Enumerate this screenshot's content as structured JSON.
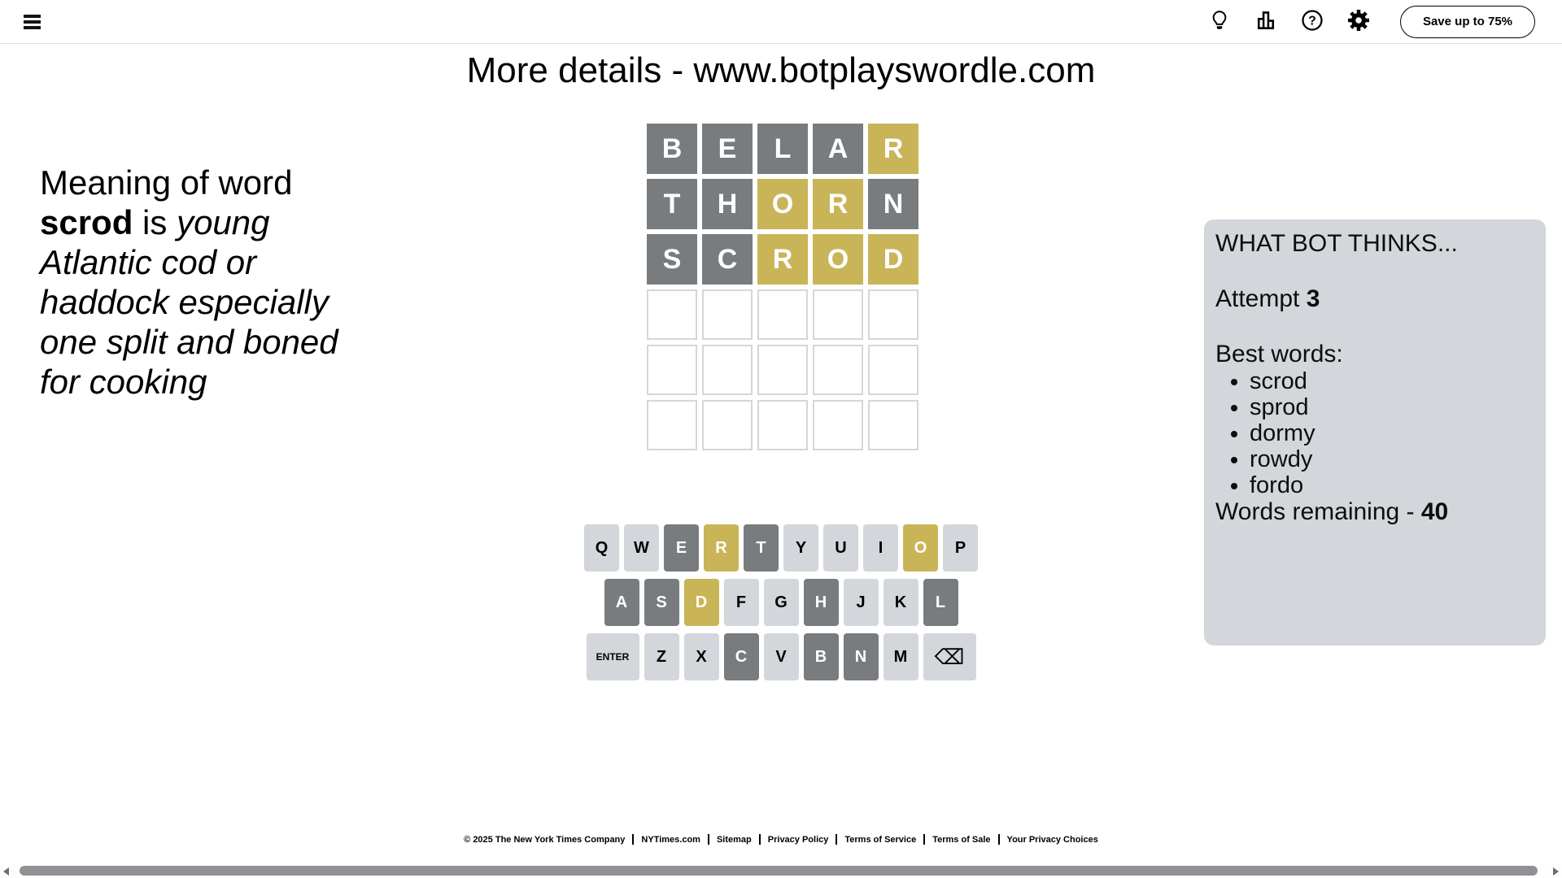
{
  "header": {
    "menu_icon": "hamburger",
    "actions": {
      "hint": "lightbulb",
      "stats": "bar-chart",
      "help": "question-mark",
      "settings": "gear"
    },
    "subscribe_label": "Save up to 75%"
  },
  "title": "More details - www.botplayswordle.com",
  "definition": {
    "lead": "Meaning of word",
    "word": "scrod",
    "connector": "is",
    "meaning": "young Atlantic cod or haddock especially one split and boned for cooking"
  },
  "board": {
    "rows": [
      {
        "letters": [
          "B",
          "E",
          "L",
          "A",
          "R"
        ],
        "states": [
          "absent",
          "absent",
          "absent",
          "absent",
          "present"
        ]
      },
      {
        "letters": [
          "T",
          "H",
          "O",
          "R",
          "N"
        ],
        "states": [
          "absent",
          "absent",
          "present",
          "present",
          "absent"
        ]
      },
      {
        "letters": [
          "S",
          "C",
          "R",
          "O",
          "D"
        ],
        "states": [
          "absent",
          "absent",
          "present",
          "present",
          "present"
        ]
      },
      {
        "letters": [
          "",
          "",
          "",
          "",
          ""
        ],
        "states": [
          "empty",
          "empty",
          "empty",
          "empty",
          "empty"
        ]
      },
      {
        "letters": [
          "",
          "",
          "",
          "",
          ""
        ],
        "states": [
          "empty",
          "empty",
          "empty",
          "empty",
          "empty"
        ]
      },
      {
        "letters": [
          "",
          "",
          "",
          "",
          ""
        ],
        "states": [
          "empty",
          "empty",
          "empty",
          "empty",
          "empty"
        ]
      }
    ]
  },
  "keyboard": {
    "rows": [
      [
        {
          "id": "q",
          "label": "Q",
          "state": "unused"
        },
        {
          "id": "w",
          "label": "W",
          "state": "unused"
        },
        {
          "id": "e",
          "label": "E",
          "state": "absent"
        },
        {
          "id": "r",
          "label": "R",
          "state": "present"
        },
        {
          "id": "t",
          "label": "T",
          "state": "absent"
        },
        {
          "id": "y",
          "label": "Y",
          "state": "unused"
        },
        {
          "id": "u",
          "label": "U",
          "state": "unused"
        },
        {
          "id": "i",
          "label": "I",
          "state": "unused"
        },
        {
          "id": "o",
          "label": "O",
          "state": "present"
        },
        {
          "id": "p",
          "label": "P",
          "state": "unused"
        }
      ],
      [
        {
          "id": "a",
          "label": "A",
          "state": "absent"
        },
        {
          "id": "s",
          "label": "S",
          "state": "absent"
        },
        {
          "id": "d",
          "label": "D",
          "state": "present"
        },
        {
          "id": "f",
          "label": "F",
          "state": "unused"
        },
        {
          "id": "g",
          "label": "G",
          "state": "unused"
        },
        {
          "id": "h",
          "label": "H",
          "state": "absent"
        },
        {
          "id": "j",
          "label": "J",
          "state": "unused"
        },
        {
          "id": "k",
          "label": "K",
          "state": "unused"
        },
        {
          "id": "l",
          "label": "L",
          "state": "absent"
        }
      ],
      [
        {
          "id": "enter",
          "label": "ENTER",
          "state": "unused",
          "wide": true
        },
        {
          "id": "z",
          "label": "Z",
          "state": "unused"
        },
        {
          "id": "x",
          "label": "X",
          "state": "unused"
        },
        {
          "id": "c",
          "label": "C",
          "state": "absent"
        },
        {
          "id": "v",
          "label": "V",
          "state": "unused"
        },
        {
          "id": "b",
          "label": "B",
          "state": "absent"
        },
        {
          "id": "n",
          "label": "N",
          "state": "absent"
        },
        {
          "id": "m",
          "label": "M",
          "state": "unused"
        },
        {
          "id": "backspace",
          "label": "⌫",
          "state": "unused",
          "wide": true
        }
      ]
    ]
  },
  "bot_panel": {
    "title": "WHAT BOT THINKS...",
    "attempt_label": "Attempt",
    "attempt_number": "3",
    "best_words_label": "Best words:",
    "best_words": [
      "scrod",
      "sprod",
      "dormy",
      "rowdy",
      "fordo"
    ],
    "words_remaining_label": "Words remaining -",
    "words_remaining": "40"
  },
  "footer": {
    "items": [
      "© 2025 The New York Times Company",
      "NYTimes.com",
      "Sitemap",
      "Privacy Policy",
      "Terms of Service",
      "Terms of Sale",
      "Your Privacy Choices"
    ]
  },
  "colors": {
    "absent": "#787c7e",
    "present": "#c9b458",
    "key_default": "#d3d6da",
    "panel_bg": "#d3d6da",
    "empty_tile_border": "#d3d6da",
    "scrollbar_thumb": "#8f9194"
  }
}
